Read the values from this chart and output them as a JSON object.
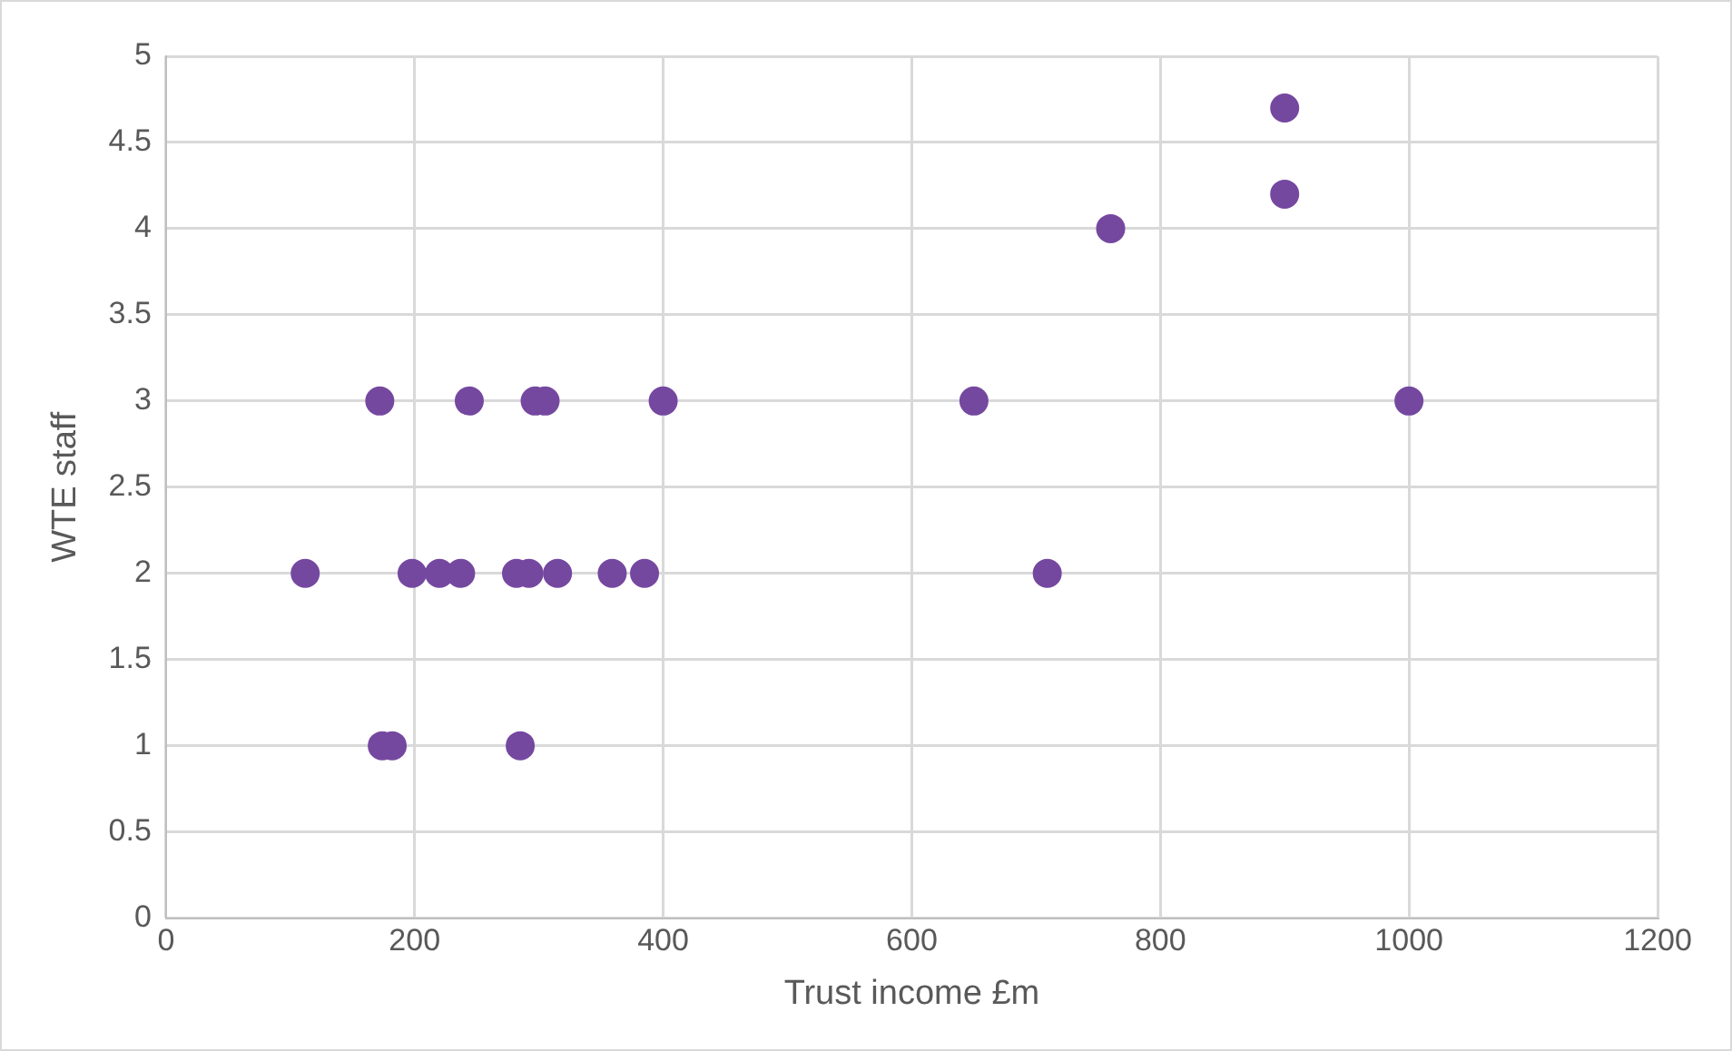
{
  "chart_data": {
    "type": "scatter",
    "xlabel": "Trust income £m",
    "ylabel": "WTE staff",
    "x": [
      172,
      244,
      297,
      305,
      400,
      650,
      1000,
      112,
      198,
      220,
      237,
      282,
      292,
      315,
      359,
      385,
      709,
      174,
      182,
      285,
      900,
      900,
      760
    ],
    "values": [
      3,
      3,
      3,
      3,
      3,
      3,
      3,
      2,
      2,
      2,
      2,
      2,
      2,
      2,
      2,
      2,
      2,
      1,
      1,
      1,
      4.7,
      4.2,
      4
    ],
    "color": "#7548a0",
    "marker": "circle",
    "xlim": [
      0,
      1200
    ],
    "xticks": [
      0,
      200,
      400,
      600,
      800,
      1000,
      1200
    ],
    "ylim": [
      0,
      5
    ],
    "yticks": [
      0,
      0.5,
      1,
      1.5,
      2,
      2.5,
      3,
      3.5,
      4,
      4.5,
      5
    ],
    "grid": true,
    "legend": false
  }
}
